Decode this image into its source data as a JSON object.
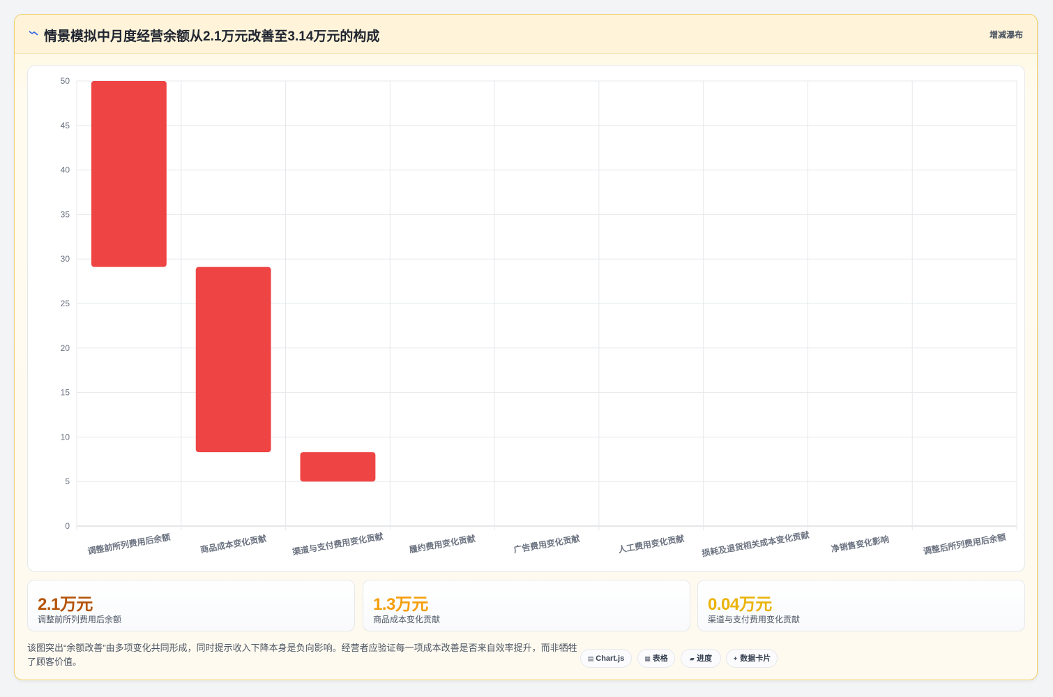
{
  "header": {
    "title": "情景模拟中月度经营余额从2.1万元改善至3.14万元的构成",
    "view_tag": "增减瀑布"
  },
  "chart_data": {
    "type": "bar",
    "subtype": "floating-waterfall",
    "categories": [
      "调整前所列费用后余额",
      "商品成本变化贡献",
      "渠道与支付费用变化贡献",
      "履约费用变化贡献",
      "广告费用变化贡献",
      "人工费用变化贡献",
      "损耗及退货相关成本变化贡献",
      "净销售变化影响",
      "调整后所列费用后余额"
    ],
    "ranges": [
      [
        29.1,
        50
      ],
      [
        8.3,
        29.1
      ],
      [
        5,
        8.3
      ],
      null,
      null,
      null,
      null,
      null,
      null
    ],
    "ylim": [
      0,
      50
    ],
    "yticks": [
      0,
      5,
      10,
      15,
      20,
      25,
      30,
      35,
      40,
      45,
      50
    ],
    "bar_color": "#ef4444",
    "grid": true,
    "legend": "none"
  },
  "kpis": [
    {
      "value": "2.1万元",
      "label": "调整前所列费用后余额",
      "color": "#b45309"
    },
    {
      "value": "1.3万元",
      "label": "商品成本变化贡献",
      "color": "#f59e0b"
    },
    {
      "value": "0.04万元",
      "label": "渠道与支付费用变化贡献",
      "color": "#eab308"
    }
  ],
  "note": "该图突出“余额改善”由多项变化共同形成，同时提示收入下降本身是负向影响。经营者应验证每一项成本改善是否来自效率提升，而非牺牲了顾客价值。",
  "pills": [
    {
      "icon": "chart-icon",
      "label": "Chart.js"
    },
    {
      "icon": "table-icon",
      "label": "表格"
    },
    {
      "icon": "progress-icon",
      "label": "进度"
    },
    {
      "icon": "sparkle-icon",
      "label": "数据卡片"
    }
  ]
}
